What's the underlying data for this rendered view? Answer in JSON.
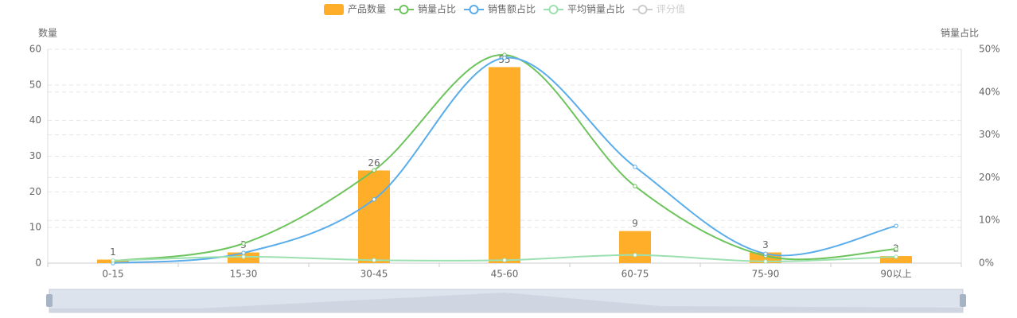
{
  "chart_data": {
    "type": "bar-line",
    "categories": [
      "0-15",
      "15-30",
      "30-45",
      "45-60",
      "60-75",
      "75-90",
      "90以上"
    ],
    "y_label": "数量",
    "y2_label": "销量占比",
    "ylim": [
      0,
      60
    ],
    "yticks": [
      0,
      10,
      20,
      30,
      40,
      50,
      60
    ],
    "y2lim": [
      0,
      50
    ],
    "y2ticks": [
      {
        "value": 0,
        "label": "0%"
      },
      {
        "value": 10,
        "label": "10%"
      },
      {
        "value": 20,
        "label": "20%"
      },
      {
        "value": 30,
        "label": "30%"
      },
      {
        "value": 40,
        "label": "40%"
      },
      {
        "value": 50,
        "label": "50%"
      }
    ],
    "grid": true,
    "series": [
      {
        "name": "产品数量",
        "type": "bar",
        "color": "#ffae2a",
        "values": [
          1,
          3,
          26,
          55,
          9,
          3,
          2
        ]
      },
      {
        "name": "销量占比",
        "type": "line",
        "axis": "y2",
        "color": "#6dc35c",
        "values": [
          0.5,
          4.6,
          21.7,
          48.7,
          18,
          1.7,
          3.3
        ]
      },
      {
        "name": "销售额占比",
        "type": "line",
        "axis": "y2",
        "color": "#5aadea",
        "values": [
          0,
          2.4,
          14.9,
          48,
          22.5,
          2.2,
          8.7
        ]
      },
      {
        "name": "平均销量占比",
        "type": "line",
        "axis": "y2",
        "color": "#9de0b0",
        "values": [
          0.6,
          1.5,
          0.7,
          0.7,
          1.9,
          0.4,
          1.5
        ]
      },
      {
        "name": "评分值",
        "type": "line",
        "axis": "y2",
        "color": "#cccccc",
        "visible": false,
        "values": [
          null,
          null,
          null,
          null,
          null,
          null,
          null
        ]
      }
    ]
  }
}
